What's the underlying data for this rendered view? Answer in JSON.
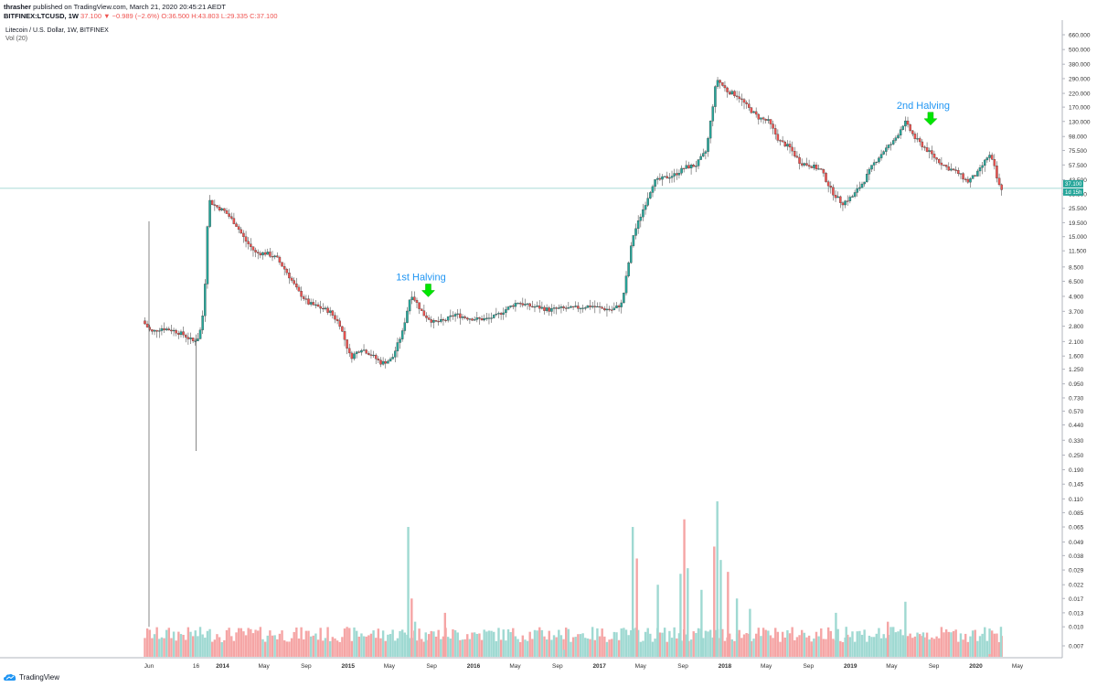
{
  "header": {
    "publisher": "thrasher",
    "published_text": "published on TradingView.com, March 21, 2020 20:45:21 AEDT",
    "symbol": "BITFINEX:LTCUSD, 1W",
    "ohlc_text": "37.100 ▼ −0.989 (−2.6%) O:36.500 H:43.803 L:29.335 C:37.100"
  },
  "legend": {
    "title": "Litecoin / U.S. Dollar, 1W, BITFINEX",
    "volume": "Vol (20)"
  },
  "footer": {
    "brand": "TradingView",
    "logo_icon": "tradingview-cloud-icon"
  },
  "chart_data": {
    "type": "candlestick",
    "scale": "log",
    "grid": false,
    "colors": {
      "up": "#26a69a",
      "down": "#ef5350",
      "up_volume": "#9fd9d2",
      "down_volume": "#f5a5a5",
      "annotation": "#2196f3",
      "arrow": "#00e600",
      "price_line": "#8ccfc9"
    },
    "price_ticks": [
      "660.000",
      "500.000",
      "380.000",
      "290.000",
      "220.000",
      "170.000",
      "130.000",
      "98.000",
      "75.500",
      "57.500",
      "43.500",
      "33.500",
      "25.500",
      "19.500",
      "15.000",
      "11.500",
      "8.500",
      "6.500",
      "4.900",
      "3.700",
      "2.800",
      "2.100",
      "1.600",
      "1.250",
      "0.950",
      "0.730",
      "0.570",
      "0.440",
      "0.330",
      "0.250",
      "0.190",
      "0.145",
      "0.110",
      "0.085",
      "0.065",
      "0.049",
      "0.038",
      "0.029",
      "0.022",
      "0.017",
      "0.013",
      "0.010",
      "0.007"
    ],
    "time_ticks": [
      "Jun",
      "16",
      "2014",
      "May",
      "Sep",
      "2015",
      "May",
      "Sep",
      "2016",
      "May",
      "Sep",
      "2017",
      "May",
      "Sep",
      "2018",
      "May",
      "Sep",
      "2019",
      "May",
      "Sep",
      "2020",
      "May"
    ],
    "time_tick_dates": [
      "2013-06-01",
      "2013-10-16",
      "2014-01-01",
      "2014-05-01",
      "2014-09-01",
      "2015-01-01",
      "2015-05-01",
      "2015-09-01",
      "2016-01-01",
      "2016-05-01",
      "2016-09-01",
      "2017-01-01",
      "2017-05-01",
      "2017-09-01",
      "2018-01-01",
      "2018-05-01",
      "2018-09-01",
      "2019-01-01",
      "2019-05-01",
      "2019-09-01",
      "2020-01-01",
      "2020-05-01"
    ],
    "last_price": "37.100",
    "last_price_countdown": "1d 15h",
    "price_path": [
      [
        "2013-05-20",
        3.1
      ],
      [
        "2013-06-15",
        2.5
      ],
      [
        "2013-07-15",
        2.7
      ],
      [
        "2013-08-15",
        2.6
      ],
      [
        "2013-09-15",
        2.4
      ],
      [
        "2013-10-15",
        2.1
      ],
      [
        "2013-11-01",
        2.3
      ],
      [
        "2013-11-15",
        4.0
      ],
      [
        "2013-11-28",
        30
      ],
      [
        "2013-12-15",
        27
      ],
      [
        "2014-01-15",
        24
      ],
      [
        "2014-02-15",
        19
      ],
      [
        "2014-03-15",
        14
      ],
      [
        "2014-04-15",
        11
      ],
      [
        "2014-05-15",
        11
      ],
      [
        "2014-06-15",
        10
      ],
      [
        "2014-07-15",
        7.6
      ],
      [
        "2014-08-15",
        5.4
      ],
      [
        "2014-09-15",
        4.3
      ],
      [
        "2014-10-15",
        4.0
      ],
      [
        "2014-11-15",
        3.7
      ],
      [
        "2014-12-15",
        2.9
      ],
      [
        "2015-01-15",
        1.55
      ],
      [
        "2015-02-15",
        1.85
      ],
      [
        "2015-03-15",
        1.65
      ],
      [
        "2015-04-15",
        1.4
      ],
      [
        "2015-05-15",
        1.5
      ],
      [
        "2015-06-15",
        2.5
      ],
      [
        "2015-07-10",
        5.2
      ],
      [
        "2015-08-15",
        3.5
      ],
      [
        "2015-09-15",
        3.0
      ],
      [
        "2015-10-15",
        3.1
      ],
      [
        "2015-11-15",
        3.5
      ],
      [
        "2015-12-15",
        3.3
      ],
      [
        "2016-01-15",
        3.2
      ],
      [
        "2016-02-15",
        3.2
      ],
      [
        "2016-03-15",
        3.4
      ],
      [
        "2016-04-15",
        3.9
      ],
      [
        "2016-05-15",
        4.4
      ],
      [
        "2016-06-15",
        4.1
      ],
      [
        "2016-07-15",
        4.0
      ],
      [
        "2016-08-15",
        3.8
      ],
      [
        "2016-09-15",
        3.9
      ],
      [
        "2016-10-15",
        3.9
      ],
      [
        "2016-11-15",
        4.0
      ],
      [
        "2016-12-15",
        4.1
      ],
      [
        "2017-01-15",
        3.9
      ],
      [
        "2017-02-15",
        3.8
      ],
      [
        "2017-03-15",
        4.3
      ],
      [
        "2017-04-01",
        8.5
      ],
      [
        "2017-04-15",
        15
      ],
      [
        "2017-05-15",
        25
      ],
      [
        "2017-06-15",
        42
      ],
      [
        "2017-07-15",
        45
      ],
      [
        "2017-08-15",
        48
      ],
      [
        "2017-09-15",
        55
      ],
      [
        "2017-10-15",
        57
      ],
      [
        "2017-11-15",
        75
      ],
      [
        "2017-12-15",
        290
      ],
      [
        "2018-01-15",
        230
      ],
      [
        "2018-02-15",
        210
      ],
      [
        "2018-03-15",
        170
      ],
      [
        "2018-04-15",
        140
      ],
      [
        "2018-05-15",
        130
      ],
      [
        "2018-06-15",
        90
      ],
      [
        "2018-07-15",
        80
      ],
      [
        "2018-08-15",
        60
      ],
      [
        "2018-09-15",
        57
      ],
      [
        "2018-10-15",
        52
      ],
      [
        "2018-11-15",
        35
      ],
      [
        "2018-12-15",
        28
      ],
      [
        "2019-01-15",
        32
      ],
      [
        "2019-02-15",
        42
      ],
      [
        "2019-03-15",
        58
      ],
      [
        "2019-04-15",
        75
      ],
      [
        "2019-05-15",
        90
      ],
      [
        "2019-06-15",
        130
      ],
      [
        "2019-07-15",
        95
      ],
      [
        "2019-08-15",
        78
      ],
      [
        "2019-09-15",
        64
      ],
      [
        "2019-10-15",
        55
      ],
      [
        "2019-11-15",
        50
      ],
      [
        "2019-12-15",
        42
      ],
      [
        "2020-01-15",
        50
      ],
      [
        "2020-02-15",
        70
      ],
      [
        "2020-02-29",
        58
      ],
      [
        "2020-03-13",
        40
      ],
      [
        "2020-03-21",
        37.1
      ]
    ],
    "spike_wicks": [
      {
        "date": "2013-06-01",
        "high": 20,
        "low": 0.01
      },
      {
        "date": "2013-10-16",
        "high": 2.4,
        "low": 0.27
      }
    ],
    "volume_bars": [
      [
        "2015-06-25",
        0.065
      ],
      [
        "2015-07-05",
        0.017
      ],
      [
        "2015-07-15",
        0.011
      ],
      [
        "2015-08-15",
        0.009
      ],
      [
        "2015-10-10",
        0.013
      ],
      [
        "2016-09-20",
        0.0065
      ],
      [
        "2017-04-08",
        0.065
      ],
      [
        "2017-04-20",
        0.036
      ],
      [
        "2017-06-20",
        0.022
      ],
      [
        "2017-08-25",
        0.027
      ],
      [
        "2017-09-05",
        0.075
      ],
      [
        "2017-09-15",
        0.03
      ],
      [
        "2017-10-25",
        0.02
      ],
      [
        "2017-12-01",
        0.045
      ],
      [
        "2017-12-10",
        0.105
      ],
      [
        "2017-12-20",
        0.035
      ],
      [
        "2018-01-10",
        0.028
      ],
      [
        "2018-02-05",
        0.017
      ],
      [
        "2018-03-15",
        0.014
      ],
      [
        "2018-09-10",
        0.007
      ],
      [
        "2018-11-20",
        0.013
      ],
      [
        "2018-12-20",
        0.01
      ],
      [
        "2019-04-20",
        0.011
      ],
      [
        "2019-06-10",
        0.016
      ],
      [
        "2019-08-01",
        0.009
      ],
      [
        "2020-02-10",
        0.006
      ],
      [
        "2020-03-14",
        0.01
      ]
    ],
    "annotations": [
      {
        "text": "1st Halving",
        "date": "2015-08-01",
        "price": 5.2
      },
      {
        "text": "2nd Halving",
        "date": "2019-08-01",
        "price": 130
      }
    ]
  }
}
